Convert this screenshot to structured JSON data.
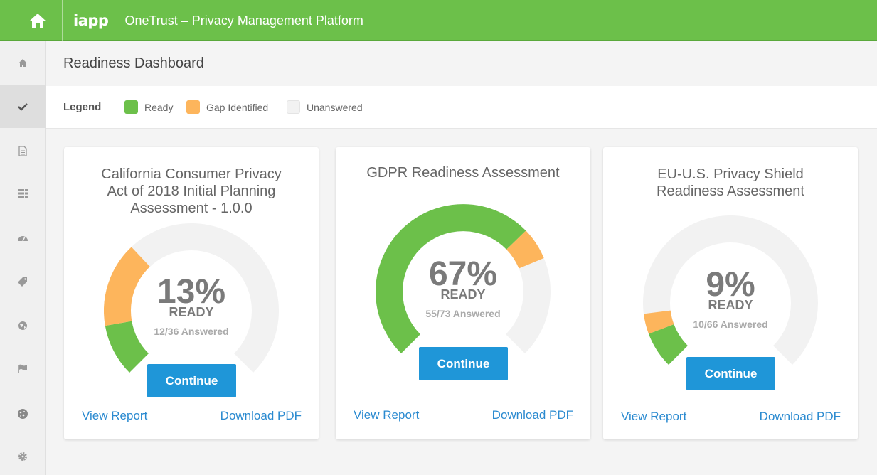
{
  "colors": {
    "topbar": "#6cc04a",
    "ready": "#6cc04a",
    "gap": "#fdb55c",
    "unanswered": "#f2f2f2",
    "button": "#1f96d8",
    "link": "#2a8ad0"
  },
  "topbar": {
    "home_icon": "home-icon",
    "logo": "iapp",
    "title": "OneTrust – Privacy Management Platform"
  },
  "sidebar": {
    "items": [
      {
        "icon": "home-icon",
        "active": false
      },
      {
        "icon": "checkmark-icon",
        "active": true
      },
      {
        "icon": "document-icon",
        "active": false
      },
      {
        "icon": "grid-icon",
        "active": false
      },
      {
        "icon": "dashboard-icon",
        "active": false
      },
      {
        "icon": "tag-icon",
        "active": false
      },
      {
        "icon": "globe-icon",
        "active": false
      },
      {
        "icon": "flag-icon",
        "active": false
      },
      {
        "icon": "cookie-icon",
        "active": false
      },
      {
        "icon": "gear-icon",
        "active": false
      }
    ]
  },
  "page": {
    "title": "Readiness Dashboard"
  },
  "legend": {
    "title": "Legend",
    "items": [
      {
        "label": "Ready",
        "color": "#6cc04a"
      },
      {
        "label": "Gap Identified",
        "color": "#fdb55c"
      },
      {
        "label": "Unanswered",
        "color": "#f2f2f2"
      }
    ]
  },
  "cards": [
    {
      "title_lines": [
        "California Consumer Privacy",
        "Act of 2018 Initial Planning",
        "Assessment - 1.0.0"
      ],
      "percent": "13%",
      "ready_label": "READY",
      "answered": "12/36 Answered",
      "ready_fraction": 0.13,
      "gap_fraction": 0.21,
      "button": "Continue",
      "view_report": "View Report",
      "download_pdf": "Download PDF"
    },
    {
      "title_lines": [
        "GDPR Readiness Assessment"
      ],
      "percent": "67%",
      "ready_label": "READY",
      "answered": "55/73 Answered",
      "ready_fraction": 0.67,
      "gap_fraction": 0.08,
      "button": "Continue",
      "view_report": "View Report",
      "download_pdf": "Download PDF"
    },
    {
      "title_lines": [
        "EU-U.S. Privacy Shield",
        "Readiness Assessment"
      ],
      "percent": "9%",
      "ready_label": "READY",
      "answered": "10/66 Answered",
      "ready_fraction": 0.09,
      "gap_fraction": 0.05,
      "button": "Continue",
      "view_report": "View Report",
      "download_pdf": "Download PDF"
    }
  ]
}
